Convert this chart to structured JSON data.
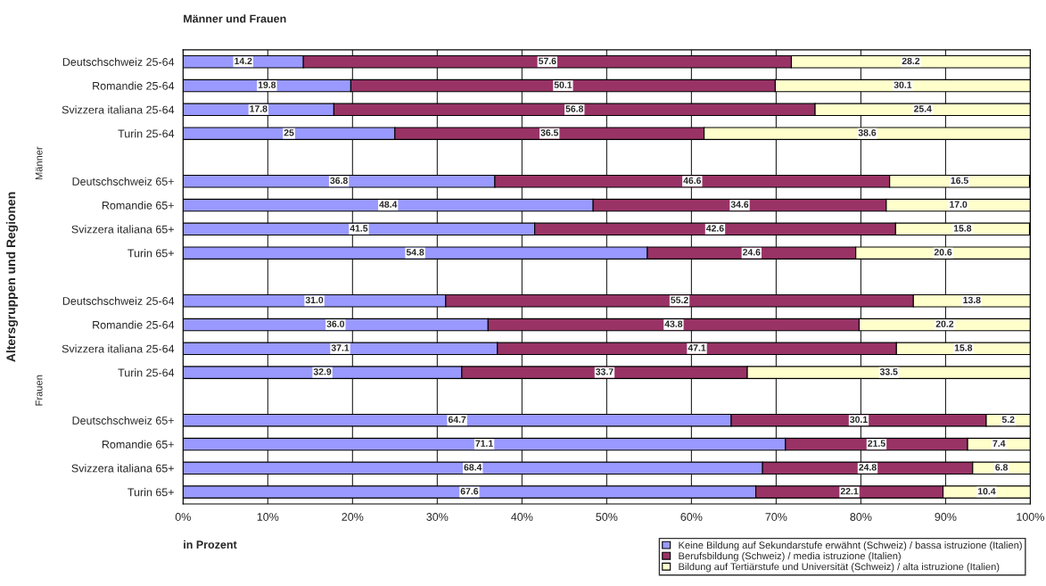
{
  "chart_data": {
    "type": "bar",
    "orientation": "horizontal",
    "stacked": true,
    "title": "Männer und Frauen",
    "xlabel": "in Prozent",
    "ylabel": "Altersgruppen und Regionen",
    "categories": [
      "Deutschschweiz 25-64",
      "Romandie 25-64",
      "Svizzera italiana 25-64",
      "Turin 25-64",
      null,
      "Deutschschweiz 65+",
      "Romandie 65+",
      "Svizzera italiana 65+",
      "Turin 65+",
      null,
      "Deutschschweiz 25-64",
      "Romandie 25-64",
      "Svizzera italiana 25-64",
      "Turin 25-64",
      null,
      "Deutschschweiz 65+",
      "Romandie 65+",
      "Svizzera italiana 65+",
      "Turin 65+"
    ],
    "series": [
      {
        "name": "Keine Bildung auf Sekundarstufe erwähnt (Schweiz) / bassa istruzione (Italien)",
        "color": "#9999ff",
        "values": [
          14.2,
          19.8,
          17.8,
          25,
          null,
          36.8,
          48.4,
          41.5,
          54.8,
          null,
          31.0,
          36.0,
          37.1,
          32.9,
          null,
          64.7,
          71.1,
          68.4,
          67.6
        ],
        "value_labels": [
          "14.2",
          "19.8",
          "17.8",
          "25",
          null,
          "36.8",
          "48.4",
          "41.5",
          "54.8",
          null,
          "31.0",
          "36.0",
          "37.1",
          "32.9",
          null,
          "64.7",
          "71.1",
          "68.4",
          "67.6"
        ]
      },
      {
        "name": "Berufsbildung (Schweiz) / media istruzione (Italien)",
        "color": "#993366",
        "values": [
          57.6,
          50.1,
          56.8,
          36.5,
          null,
          46.6,
          34.6,
          42.6,
          24.6,
          null,
          55.2,
          43.8,
          47.1,
          33.7,
          null,
          30.1,
          21.5,
          24.8,
          22.1
        ],
        "value_labels": [
          "57.6",
          "50.1",
          "56.8",
          "36.5",
          null,
          "46.6",
          "34.6",
          "42.6",
          "24.6",
          null,
          "55.2",
          "43.8",
          "47.1",
          "33.7",
          null,
          "30.1",
          "21.5",
          "24.8",
          "22.1"
        ]
      },
      {
        "name": "Bildung auf Tertiärstufe und Universität (Schweiz) / alta istruzione (Italien)",
        "color": "#ffffcc",
        "values": [
          28.2,
          30.1,
          25.4,
          38.6,
          null,
          16.5,
          17.0,
          15.8,
          20.6,
          null,
          13.8,
          20.2,
          15.8,
          33.5,
          null,
          5.2,
          7.4,
          6.8,
          10.4
        ],
        "value_labels": [
          "28.2",
          "30.1",
          "25.4",
          "38.6",
          null,
          "16.5",
          "17.0",
          "15.8",
          "20.6",
          null,
          "13.8",
          "20.2",
          "15.8",
          "33.5",
          null,
          "5.2",
          "7.4",
          "6.8",
          "10.4"
        ]
      }
    ],
    "xlim": [
      0,
      100
    ],
    "xticks": [
      {
        "value": 0,
        "label": "0%"
      },
      {
        "value": 10,
        "label": "10%"
      },
      {
        "value": 20,
        "label": "20%"
      },
      {
        "value": 30,
        "label": "30%"
      },
      {
        "value": 40,
        "label": "40%"
      },
      {
        "value": 50,
        "label": "50%"
      },
      {
        "value": 60,
        "label": "60%"
      },
      {
        "value": 70,
        "label": "70%"
      },
      {
        "value": 80,
        "label": "80%"
      },
      {
        "value": 90,
        "label": "90%"
      },
      {
        "value": 100,
        "label": "100%"
      }
    ],
    "grid": "x",
    "legend": "bottom right",
    "annotations": [
      "Männer",
      "Frauen"
    ]
  }
}
